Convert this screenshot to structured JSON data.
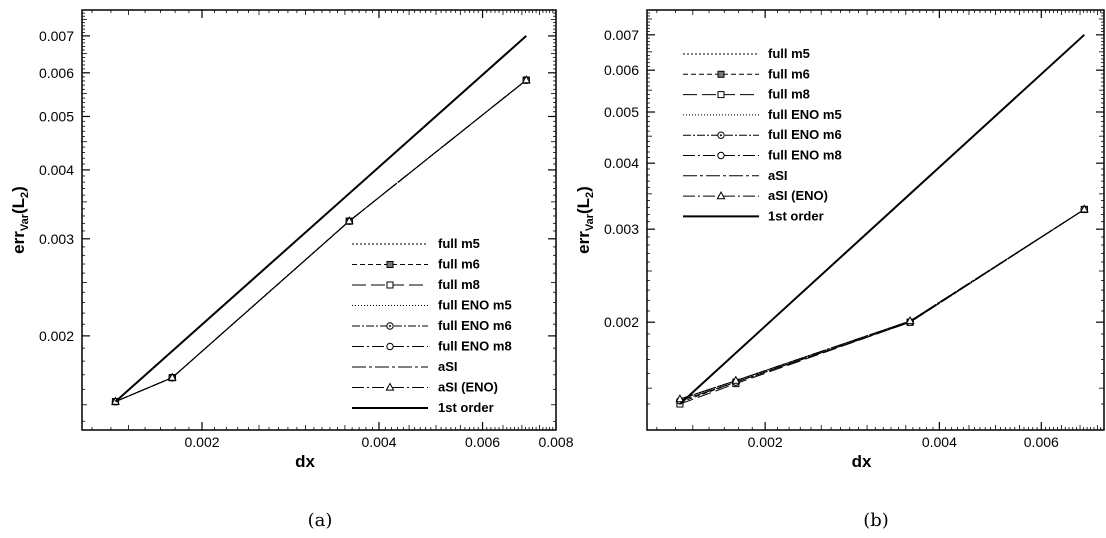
{
  "chart_data": [
    {
      "type": "line",
      "caption": "(a)",
      "xlabel": "dx",
      "ylabel_main": "err",
      "ylabel_sub": "Var",
      "ylabel_paren": "(L",
      "ylabel_paren_sub": "2",
      "ylabel_close": ")",
      "xscale": "log",
      "yscale": "log",
      "xlim": [
        0.00125,
        0.008
      ],
      "ylim": [
        0.00135,
        0.0078
      ],
      "xticks": [
        0.002,
        0.004,
        0.006,
        0.008
      ],
      "xtick_labels": [
        "0.002",
        "0.004",
        "0.006",
        "0.008"
      ],
      "yticks": [
        0.002,
        0.003,
        0.004,
        0.005,
        0.006,
        0.007
      ],
      "ytick_labels": [
        "0.002",
        "0.003",
        "0.004",
        "0.005",
        "0.006",
        "0.007"
      ],
      "legend_position": "lower-right",
      "x": [
        0.001425,
        0.00178,
        0.00356,
        0.00712
      ],
      "series": [
        {
          "name": "full m5",
          "dash": "2,2",
          "marker": "none",
          "values": [
            0.00152,
            0.00168,
            0.00323,
            0.00582
          ]
        },
        {
          "name": "full m6",
          "dash": "5,3",
          "marker": "square-filled",
          "values": [
            0.00152,
            0.00168,
            0.00323,
            0.00582
          ]
        },
        {
          "name": "full m8",
          "dash": "14,5",
          "marker": "square",
          "values": [
            0.00152,
            0.00168,
            0.00323,
            0.00582
          ]
        },
        {
          "name": "full ENO m5",
          "dash": "1,2",
          "marker": "none",
          "values": [
            0.00152,
            0.00168,
            0.00323,
            0.00582
          ]
        },
        {
          "name": "full ENO m6",
          "dash": "8,2,2,2",
          "marker": "circle-dot",
          "values": [
            0.00152,
            0.00168,
            0.00323,
            0.00582
          ]
        },
        {
          "name": "full ENO m8",
          "dash": "12,3,2,3",
          "marker": "circle",
          "values": [
            0.00152,
            0.00168,
            0.00323,
            0.00582
          ]
        },
        {
          "name": "aSI",
          "dash": "14,3,3,3",
          "marker": "none",
          "values": [
            0.00152,
            0.00168,
            0.00323,
            0.00582
          ]
        },
        {
          "name": "aSI (ENO)",
          "dash": "12,3,2,3",
          "marker": "triangle",
          "values": [
            0.00152,
            0.00168,
            0.00323,
            0.00582
          ]
        },
        {
          "name": "1st order",
          "dash": "",
          "marker": "none",
          "solid": true,
          "x": [
            0.001425,
            0.00712
          ],
          "values": [
            0.00152,
            0.007
          ]
        }
      ]
    },
    {
      "type": "line",
      "caption": "(b)",
      "xlabel": "dx",
      "ylabel_main": "err",
      "ylabel_sub": "Var",
      "ylabel_paren": "(L",
      "ylabel_paren_sub": "2",
      "ylabel_close": ")",
      "xscale": "log",
      "yscale": "log",
      "xlim": [
        0.00125,
        0.0077
      ],
      "ylim": [
        0.00125,
        0.0078
      ],
      "xticks": [
        0.002,
        0.004,
        0.006
      ],
      "xtick_labels": [
        "0.002",
        "0.004",
        "0.006"
      ],
      "yticks": [
        0.002,
        0.003,
        0.004,
        0.005,
        0.006,
        0.007
      ],
      "ytick_labels": [
        "0.002",
        "0.003",
        "0.004",
        "0.005",
        "0.006",
        "0.007"
      ],
      "legend_position": "top-left",
      "x": [
        0.001425,
        0.00178,
        0.00356,
        0.00712
      ],
      "series": [
        {
          "name": "full m5",
          "dash": "2,2",
          "marker": "none",
          "values": [
            0.00143,
            0.00155,
            0.00201,
            0.00327
          ]
        },
        {
          "name": "full m6",
          "dash": "5,3",
          "marker": "square-filled",
          "values": [
            0.00141,
            0.00154,
            0.002,
            0.00327
          ]
        },
        {
          "name": "full m8",
          "dash": "14,5",
          "marker": "square",
          "values": [
            0.0014,
            0.00153,
            0.002,
            0.00327
          ]
        },
        {
          "name": "full ENO m5",
          "dash": "1,2",
          "marker": "none",
          "values": [
            0.00143,
            0.00155,
            0.00201,
            0.00327
          ]
        },
        {
          "name": "full ENO m6",
          "dash": "8,2,2,2",
          "marker": "circle-dot",
          "values": [
            0.00142,
            0.00154,
            0.002,
            0.00327
          ]
        },
        {
          "name": "full ENO m8",
          "dash": "12,3,2,3",
          "marker": "circle",
          "values": [
            0.00142,
            0.00154,
            0.002,
            0.00327
          ]
        },
        {
          "name": "aSI",
          "dash": "14,3,3,3",
          "marker": "none",
          "values": [
            0.00143,
            0.00155,
            0.00201,
            0.00327
          ]
        },
        {
          "name": "aSI (ENO)",
          "dash": "12,3,2,3",
          "marker": "triangle",
          "values": [
            0.00143,
            0.00155,
            0.00201,
            0.00327
          ]
        },
        {
          "name": "1st order",
          "dash": "",
          "marker": "none",
          "solid": true,
          "x": [
            0.001425,
            0.00712
          ],
          "values": [
            0.0014,
            0.007
          ]
        }
      ]
    }
  ]
}
